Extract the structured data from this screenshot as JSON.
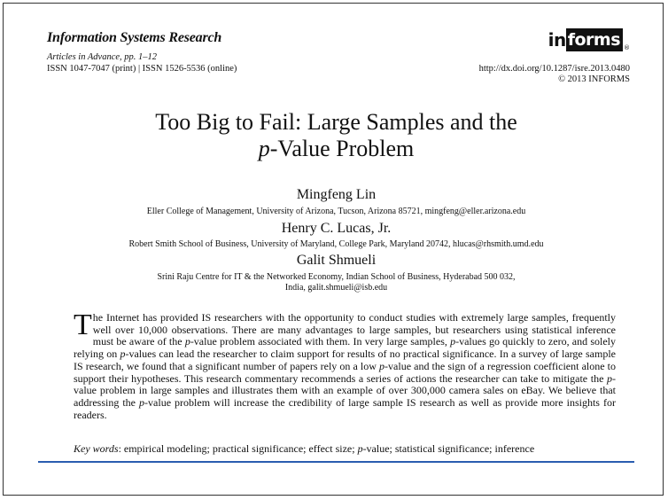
{
  "header": {
    "journal": "Information Systems Research",
    "articles": "Articles in Advance, pp. 1–12",
    "issn": "ISSN 1047-7047 (print) | ISSN 1526-5536 (online)",
    "logo_prefix": "in",
    "logo_boxed": "forms",
    "logo_mark": "®",
    "doi": "http://dx.doi.org/10.1287/isre.2013.0480",
    "copyright": "© 2013 INFORMS"
  },
  "title": {
    "line1": "Too Big to Fail: Large Samples and the",
    "line2_italic": "p",
    "line2_rest": "-Value Problem"
  },
  "authors": [
    {
      "name": "Mingfeng Lin",
      "affiliation": "Eller College of Management, University of Arizona, Tucson, Arizona 85721, mingfeng@eller.arizona.edu"
    },
    {
      "name": "Henry C. Lucas, Jr.",
      "affiliation": "Robert Smith School of Business, University of Maryland, College Park, Maryland 20742, hlucas@rhsmith.umd.edu"
    },
    {
      "name": "Galit Shmueli",
      "affiliation_line1": "Srini Raju Centre for IT & the Networked Economy, Indian School of Business, Hyderabad 500 032,",
      "affiliation_line2": "India, galit.shmueli@isb.edu"
    }
  ],
  "abstract": {
    "dropcap": "T",
    "text": "he Internet has provided IS researchers with the opportunity to conduct studies with extremely large samples, frequently well over 10,000 observations. There are many advantages to large samples, but researchers using statistical inference must be aware of the p-value problem associated with them. In very large samples, p-values go quickly to zero, and solely relying on p-values can lead the researcher to claim support for results of no practical significance. In a survey of large sample IS research, we found that a significant number of papers rely on a low p-value and the sign of a regression coefficient alone to support their hypotheses. This research commentary recommends a series of actions the researcher can take to mitigate the p-value problem in large samples and illustrates them with an example of over 300,000 camera sales on eBay. We believe that addressing the p-value problem will increase the credibility of large sample IS research as well as provide more insights for readers."
  },
  "keywords": {
    "label": "Key words",
    "text": ": empirical modeling; practical significance; effect size; p-value; statistical significance; inference"
  }
}
